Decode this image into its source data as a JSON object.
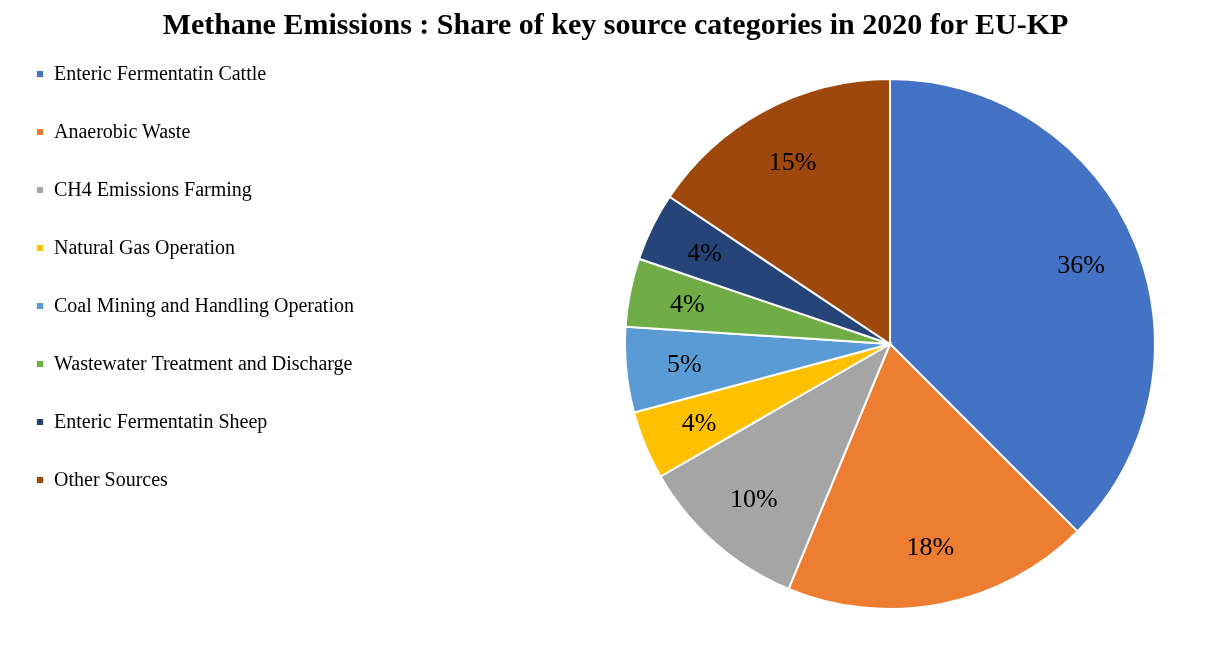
{
  "chart_data": {
    "type": "pie",
    "title": "Methane Emissions : Share of key source categories in 2020 for EU-KP",
    "categories": [
      "Enteric Fermentatin Cattle",
      "Anaerobic Waste",
      "CH4 Emissions Farming",
      "Natural Gas Operation",
      "Coal Mining and Handling Operation",
      "Wastewater Treatment and Discharge",
      "Enteric Fermentatin Sheep",
      "Other Sources"
    ],
    "values": [
      36,
      18,
      10,
      4,
      5,
      4,
      4,
      15
    ],
    "value_labels": [
      "36%",
      "18%",
      "10%",
      "4%",
      "5%",
      "4%",
      "4%",
      "15%"
    ],
    "colors": [
      "#4472c4",
      "#ed7d31",
      "#a5a5a5",
      "#ffc000",
      "#5b9bd5",
      "#70ad47",
      "#264478",
      "#9e480e"
    ],
    "legend": "left"
  }
}
